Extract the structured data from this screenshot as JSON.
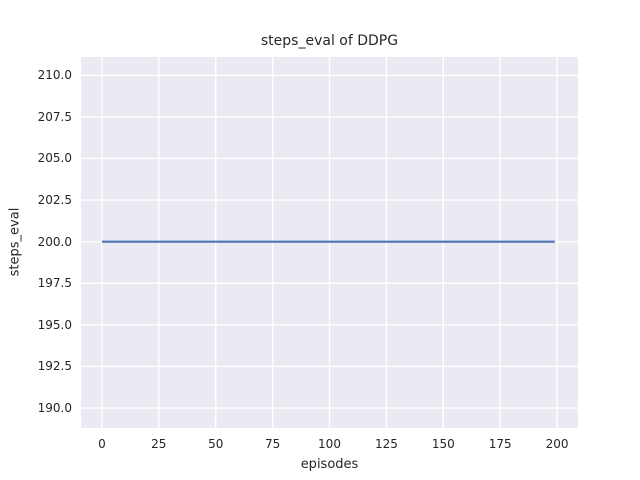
{
  "chart_data": {
    "type": "line",
    "title": "steps_eval of DDPG",
    "xlabel": "episodes",
    "ylabel": "steps_eval",
    "xlim": [
      -9.2,
      209.2
    ],
    "ylim": [
      188.8,
      211.1
    ],
    "xtick_values": [
      0,
      25,
      50,
      75,
      100,
      125,
      150,
      175,
      200
    ],
    "xtick_labels": [
      "0",
      "25",
      "50",
      "75",
      "100",
      "125",
      "150",
      "175",
      "200"
    ],
    "ytick_values": [
      190.0,
      192.5,
      195.0,
      197.5,
      200.0,
      202.5,
      205.0,
      207.5,
      210.0
    ],
    "ytick_labels": [
      "190.0",
      "192.5",
      "195.0",
      "197.5",
      "200.0",
      "202.5",
      "205.0",
      "207.5",
      "210.0"
    ],
    "grid": true,
    "legend_position": "none",
    "series": [
      {
        "name": "DDPG",
        "x": [
          0,
          199
        ],
        "y": [
          200,
          200
        ]
      }
    ],
    "colors": {
      "plot_background": "#eaeaf2",
      "grid": "#ffffff",
      "line": "#4c72b0",
      "text": "#262626",
      "figure_background": "#ffffff"
    }
  }
}
